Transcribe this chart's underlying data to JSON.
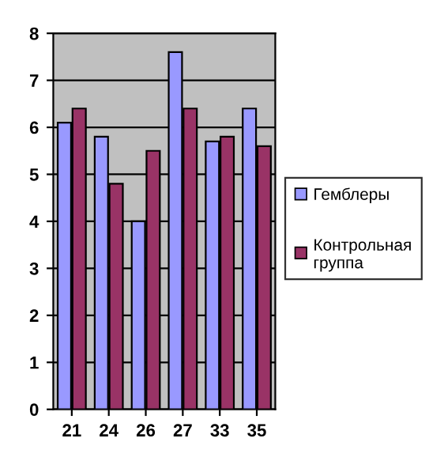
{
  "chart_data": {
    "type": "bar",
    "categories": [
      "21",
      "24",
      "26",
      "27",
      "33",
      "35"
    ],
    "series": [
      {
        "name": "Гемблеры",
        "color": "#9999ff",
        "values": [
          6.1,
          5.8,
          4.0,
          7.6,
          5.7,
          6.4
        ]
      },
      {
        "name": "Контрольная группа",
        "color": "#993366",
        "values": [
          6.4,
          4.8,
          5.5,
          6.4,
          5.8,
          5.6
        ]
      }
    ],
    "ylim": [
      0,
      8
    ],
    "yticks": [
      0,
      1,
      2,
      3,
      4,
      5,
      6,
      7,
      8
    ],
    "grid": "y",
    "legend": "right"
  }
}
